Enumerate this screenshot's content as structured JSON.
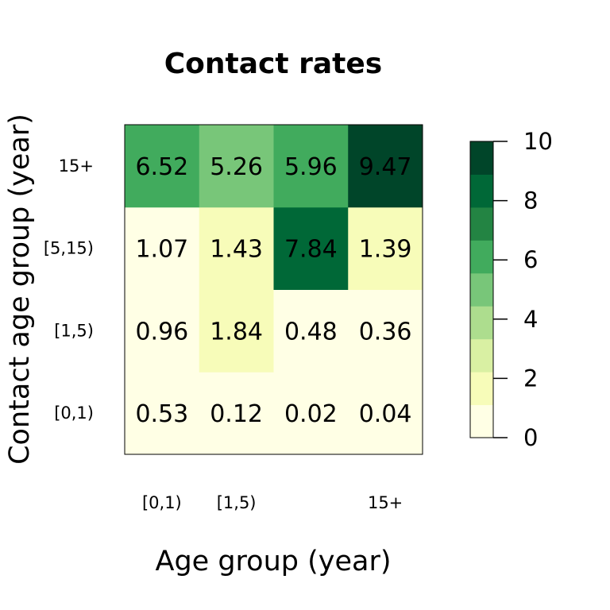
{
  "chart_data": {
    "type": "heatmap",
    "title": "Contact rates",
    "xlabel": "Age group (year)",
    "ylabel": "Contact age group (year)",
    "x_tick_labels": [
      "[0,1)",
      "[1,5)",
      "",
      "15+"
    ],
    "y_categories": [
      "[0,1)",
      "[1,5)",
      "[5,15)",
      "15+"
    ],
    "values": [
      [
        0.53,
        0.12,
        0.02,
        0.04
      ],
      [
        0.96,
        1.84,
        0.48,
        0.36
      ],
      [
        1.07,
        1.43,
        7.84,
        1.39
      ],
      [
        6.52,
        5.26,
        5.96,
        9.47
      ]
    ],
    "value_labels": [
      [
        "0.53",
        "0.12",
        "0.02",
        "0.04"
      ],
      [
        "0.96",
        "1.84",
        "0.48",
        "0.36"
      ],
      [
        "1.07",
        "1.43",
        "7.84",
        "1.39"
      ],
      [
        "6.52",
        "5.26",
        "5.96",
        "9.47"
      ]
    ],
    "colorbar": {
      "range": [
        0,
        10
      ],
      "levels": 9,
      "ticks": [
        0,
        2,
        4,
        6,
        8,
        10
      ],
      "colors": [
        "#ffffe5",
        "#f7fcb9",
        "#d9f0a3",
        "#addd8e",
        "#78c679",
        "#41ab5d",
        "#238443",
        "#006837",
        "#004529"
      ]
    }
  }
}
